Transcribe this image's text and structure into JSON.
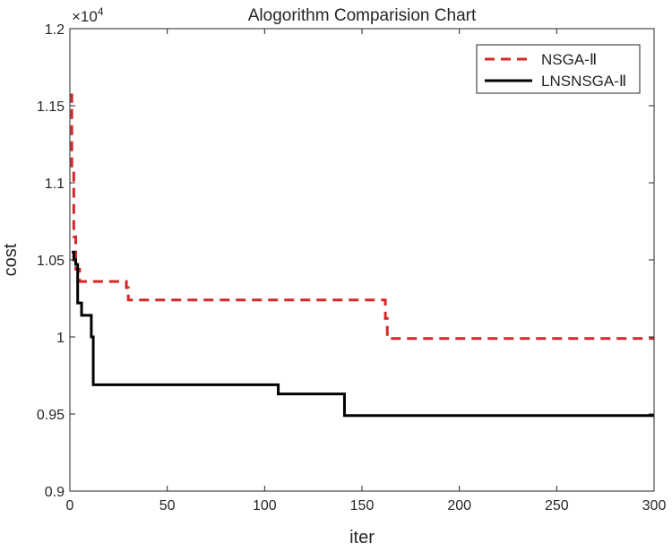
{
  "chart_data": {
    "type": "line",
    "title": "Alogorithm Comparision Chart",
    "xlabel": "iter",
    "ylabel": "cost",
    "y_exponent_label": "×10",
    "y_exponent_power": "4",
    "xlim": [
      0,
      300
    ],
    "ylim": [
      0.9,
      1.2
    ],
    "xticks": [
      0,
      50,
      100,
      150,
      200,
      250,
      300
    ],
    "xtick_labels": [
      "0",
      "50",
      "100",
      "150",
      "200",
      "250",
      "300"
    ],
    "yticks": [
      0.9,
      0.95,
      1.0,
      1.05,
      1.1,
      1.15,
      1.2
    ],
    "ytick_labels": [
      "0.9",
      "0.95",
      "1",
      "1.05",
      "1.1",
      "1.15",
      "1.2"
    ],
    "grid": false,
    "legend_position": "top-right",
    "series": [
      {
        "name": "NSGA-Ⅱ",
        "color": "#d62728",
        "style": "dashed",
        "points": [
          [
            0,
            1.157
          ],
          [
            1,
            1.157
          ],
          [
            1,
            1.11
          ],
          [
            2,
            1.11
          ],
          [
            2,
            1.065
          ],
          [
            3,
            1.065
          ],
          [
            3,
            1.044
          ],
          [
            5,
            1.044
          ],
          [
            5,
            1.036
          ],
          [
            29,
            1.036
          ],
          [
            29,
            1.032
          ],
          [
            30,
            1.032
          ],
          [
            30,
            1.024
          ],
          [
            162,
            1.024
          ],
          [
            162,
            1.012
          ],
          [
            163,
            1.012
          ],
          [
            163,
            0.999
          ],
          [
            300,
            0.999
          ]
        ]
      },
      {
        "name": "LNSNSGA-Ⅱ",
        "color": "#000000",
        "style": "solid",
        "points": [
          [
            1,
            1.055
          ],
          [
            2,
            1.055
          ],
          [
            2,
            1.05
          ],
          [
            3,
            1.05
          ],
          [
            3,
            1.047
          ],
          [
            4,
            1.047
          ],
          [
            4,
            1.022
          ],
          [
            6,
            1.022
          ],
          [
            6,
            1.014
          ],
          [
            11,
            1.014
          ],
          [
            11,
            1.0
          ],
          [
            12,
            1.0
          ],
          [
            12,
            0.969
          ],
          [
            107,
            0.969
          ],
          [
            107,
            0.963
          ],
          [
            141,
            0.963
          ],
          [
            141,
            0.949
          ],
          [
            300,
            0.949
          ]
        ]
      }
    ]
  }
}
